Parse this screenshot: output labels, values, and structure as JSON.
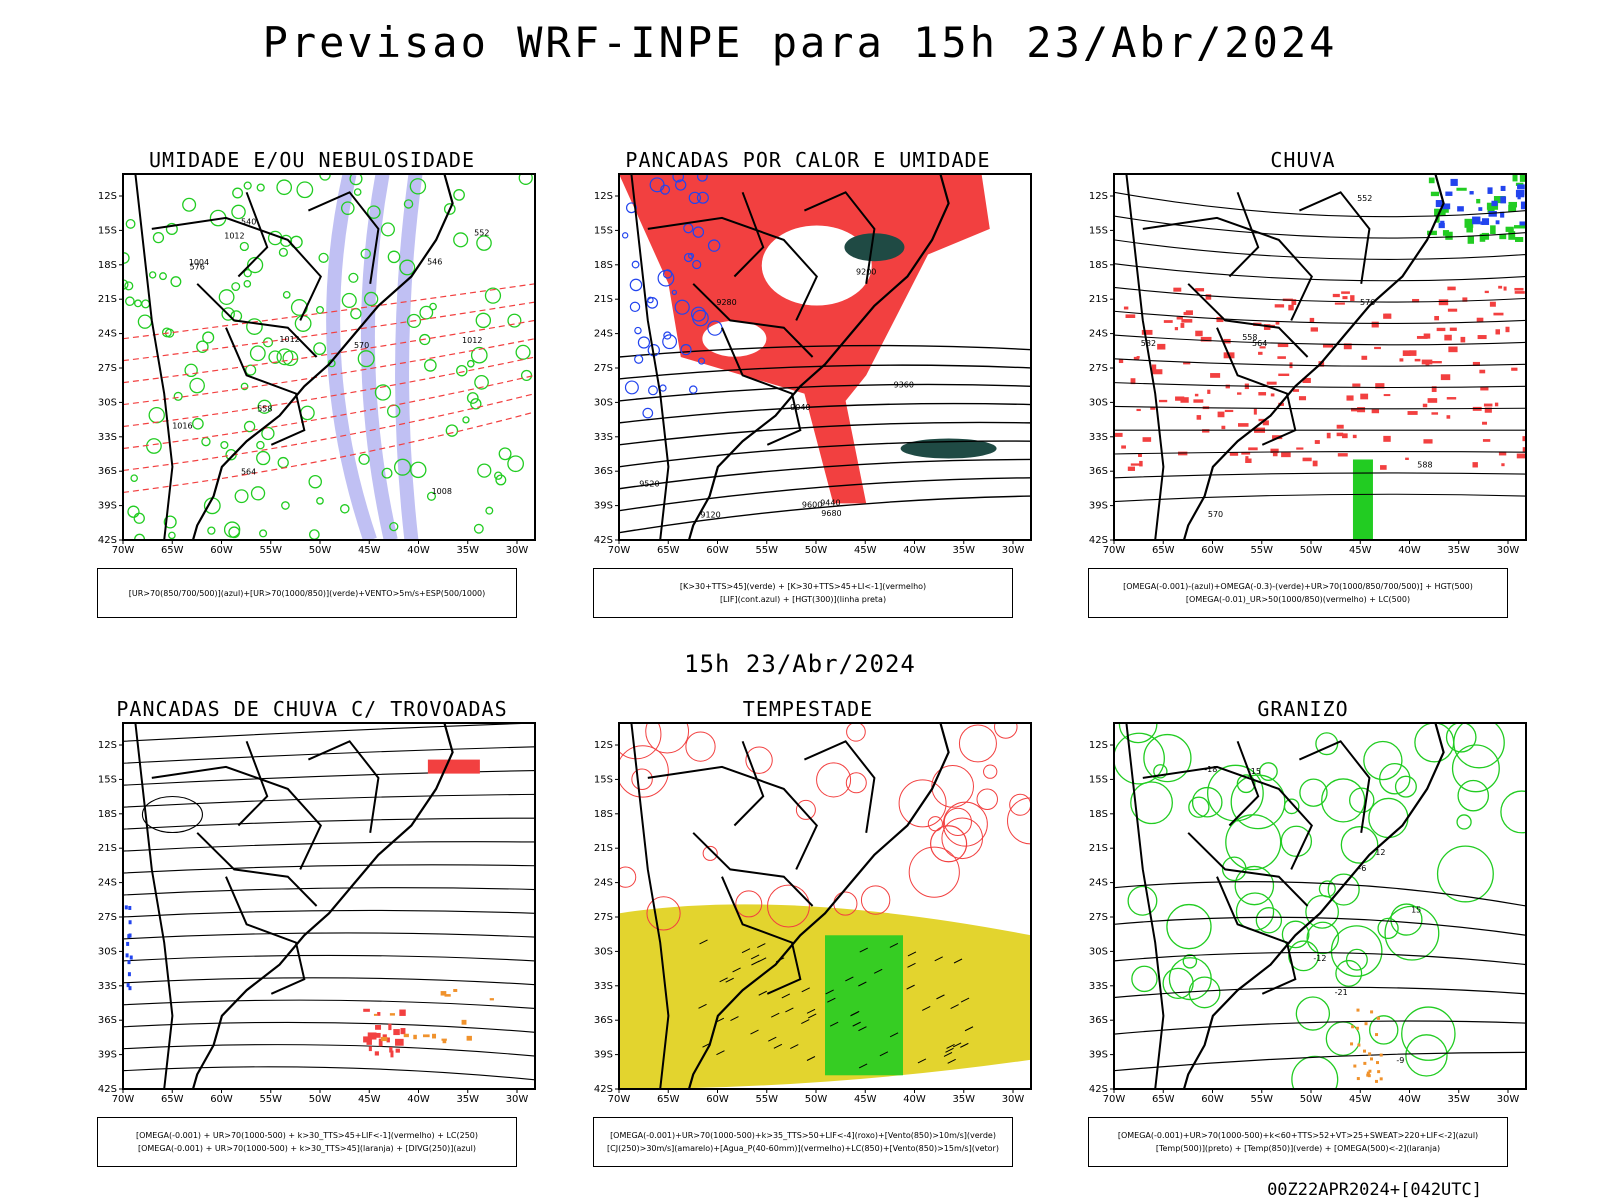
{
  "header": {
    "title": "Previsao WRF-INPE  para 15h 23/Abr/2024"
  },
  "middle": {
    "title": "15h 23/Abr/2024"
  },
  "footer": {
    "run_label": "00Z22APR2024+[042UTC]"
  },
  "axes": {
    "lat_labels": [
      "12S",
      "15S",
      "18S",
      "21S",
      "24S",
      "27S",
      "30S",
      "33S",
      "36S",
      "39S",
      "42S"
    ],
    "lon_labels": [
      "70W",
      "65W",
      "60W",
      "55W",
      "50W",
      "45W",
      "40W",
      "35W",
      "30W"
    ]
  },
  "colors": {
    "red": "#f24040",
    "green": "#22cc22",
    "blue": "#2244ee",
    "lavender": "#b0b0f0",
    "darkteal": "#1f4a44",
    "yellow": "#e3d42e",
    "orange": "#f0922c",
    "purple": "#9a4fb4"
  },
  "panels": [
    {
      "id": "umidade",
      "title": "UMIDADE E/OU NEBULOSIDADE",
      "legend": [
        "[UR>70(850/700/500)](azul)+[UR>70(1000/850)](verde)+VENTO>5m/s+ESP(500/1000)"
      ],
      "contour_labels": [
        "1012",
        "1012",
        "1012",
        "1008",
        "1016",
        "576",
        "570",
        "564",
        "558",
        "552",
        "546",
        "540",
        "1004"
      ]
    },
    {
      "id": "pancadas_calor",
      "title": "PANCADAS POR CALOR E UMIDADE",
      "legend": [
        "[K>30+TTS>45](verde) + [K>30+TTS>45+LI<-1](vermelho)",
        "[LIF](cont.azul) + [HGT(300)](linha preta)"
      ],
      "contour_labels": [
        "9680",
        "9600",
        "9520",
        "9440",
        "9360",
        "9280",
        "9200",
        "9120",
        "9040"
      ]
    },
    {
      "id": "chuva",
      "title": "CHUVA",
      "legend": [
        "[OMEGA(-0.001)-(azul)+OMEGA(-0.3)-(verde)+UR>70(1000/850/700/500)] + HGT(500)",
        "[OMEGA(-0.01)_UR>50(1000/850)(vermelho) + LC(500)"
      ],
      "contour_labels": [
        "588",
        "582",
        "576",
        "570",
        "564",
        "558",
        "552"
      ]
    },
    {
      "id": "pancadas_trovoadas",
      "title": "PANCADAS DE CHUVA C/ TROVOADAS",
      "legend": [
        "[OMEGA(-0.001) + UR>70(1000-500) + k>30_TTS>45+LIF<-1](vermelho) + LC(250)",
        "[OMEGA(-0.001) + UR>70(1000-500) + k>30_TTS>45](laranja) + [DIVG(250)](azul)"
      ],
      "contour_labels": []
    },
    {
      "id": "tempestade",
      "title": "TEMPESTADE",
      "legend": [
        "[OMEGA(-0.001)+UR>70(1000-500)+k>35_TTS>50+LIF<-4](roxo)+[Vento(850)>10m/s](verde)",
        "[CJ(250)>30m/s](amarelo)+[Agua_P(40-60mm)](vermelho)+LC(850)+[Vento(850)>15m/s](vetor)"
      ],
      "contour_labels": []
    },
    {
      "id": "granizo",
      "title": "GRANIZO",
      "legend": [
        "[OMEGA(-0.001)+UR>70(1000-500)+k<60+TTS>52+VT>25+SWEAT>220+LIF<-2](azul)",
        "[Temp(500)](preto) + [Temp(850)](verde) + [OMEGA(500)<-2](laranja)"
      ],
      "contour_labels": [
        "-6",
        "-9",
        "-12",
        "-15",
        "-18",
        "-21",
        "12",
        "15"
      ]
    }
  ]
}
